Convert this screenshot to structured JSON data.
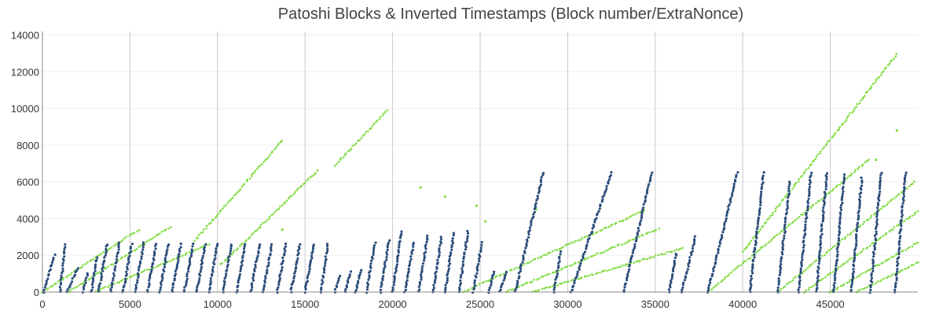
{
  "chart_data": {
    "type": "scatter",
    "title": "Patoshi Blocks & Inverted Timestamps (Block number/ExtraNonce)",
    "xlabel": "",
    "ylabel": "",
    "xlim": [
      0,
      50000
    ],
    "ylim": [
      0,
      14200
    ],
    "x_ticks": [
      0,
      5000,
      10000,
      15000,
      20000,
      25000,
      30000,
      35000,
      40000,
      45000
    ],
    "y_ticks": [
      0,
      2000,
      4000,
      6000,
      8000,
      10000,
      12000,
      14000
    ],
    "x_tick_labels": [
      "0",
      "5000",
      "10000",
      "15000",
      "20000",
      "25000",
      "30000",
      "35000",
      "40000",
      "45000"
    ],
    "y_tick_labels": [
      "0",
      "2000",
      "4000",
      "6000",
      "8000",
      "10000",
      "12000",
      "14000"
    ],
    "grid": {
      "vertical": true,
      "horizontal": true
    },
    "legend": "none",
    "series": [
      {
        "color": "#7fdb3f",
        "marker": "dot",
        "segments": [
          [
            [
              0,
              0
            ],
            [
              5500,
              3400
            ]
          ],
          [
            [
              1500,
              0
            ],
            [
              7300,
              3550
            ]
          ],
          [
            [
              3000,
              0
            ],
            [
              9500,
              2600
            ]
          ],
          [
            [
              8700,
              2800
            ],
            [
              13700,
              8250
            ]
          ],
          [
            [
              10200,
              1500
            ],
            [
              15700,
              6600
            ]
          ],
          [
            [
              16700,
              6900
            ],
            [
              19700,
              9900
            ]
          ],
          [
            [
              24000,
              0
            ],
            [
              34400,
              4450
            ]
          ],
          [
            [
              26500,
              0
            ],
            [
              35200,
              3450
            ]
          ],
          [
            [
              28000,
              0
            ],
            [
              36600,
              2400
            ]
          ],
          [
            [
              38000,
              0
            ],
            [
              47200,
              7200
            ]
          ],
          [
            [
              40000,
              2200
            ],
            [
              48800,
              12950
            ]
          ],
          [
            [
              42000,
              0
            ],
            [
              49800,
              6000
            ]
          ],
          [
            [
              43500,
              0
            ],
            [
              50000,
              4400
            ]
          ],
          [
            [
              45000,
              0
            ],
            [
              50000,
              2700
            ]
          ],
          [
            [
              46500,
              0
            ],
            [
              50000,
              1600
            ]
          ]
        ],
        "points": [
          [
            13700,
            3400
          ],
          [
            21600,
            5700
          ],
          [
            23000,
            5200
          ],
          [
            24800,
            4700
          ],
          [
            25300,
            3850
          ],
          [
            28200,
            4500
          ],
          [
            47600,
            7200
          ],
          [
            48800,
            8800
          ]
        ]
      },
      {
        "color": "#2a4c7a",
        "marker": "dot",
        "segments": [
          [
            [
              50,
              0
            ],
            [
              700,
              2000
            ]
          ],
          [
            [
              1000,
              0
            ],
            [
              1300,
              2600
            ]
          ],
          [
            [
              1400,
              0
            ],
            [
              2000,
              1300
            ]
          ],
          [
            [
              2300,
              0
            ],
            [
              2600,
              1000
            ]
          ],
          [
            [
              2800,
              0
            ],
            [
              3100,
              1900
            ]
          ],
          [
            [
              3200,
              0
            ],
            [
              3700,
              2600
            ]
          ],
          [
            [
              3900,
              0
            ],
            [
              4400,
              2700
            ]
          ],
          [
            [
              4600,
              0
            ],
            [
              5100,
              2600
            ]
          ],
          [
            [
              5300,
              0
            ],
            [
              5800,
              2700
            ]
          ],
          [
            [
              6000,
              0
            ],
            [
              6500,
              2600
            ]
          ],
          [
            [
              6700,
              0
            ],
            [
              7200,
              2600
            ]
          ],
          [
            [
              7400,
              0
            ],
            [
              7900,
              2600
            ]
          ],
          [
            [
              8100,
              0
            ],
            [
              8600,
              2600
            ]
          ],
          [
            [
              8800,
              0
            ],
            [
              9300,
              2600
            ]
          ],
          [
            [
              9500,
              0
            ],
            [
              10000,
              2600
            ]
          ],
          [
            [
              10300,
              0
            ],
            [
              10800,
              2600
            ]
          ],
          [
            [
              11100,
              0
            ],
            [
              11600,
              2600
            ]
          ],
          [
            [
              11900,
              0
            ],
            [
              12400,
              2600
            ]
          ],
          [
            [
              12600,
              0
            ],
            [
              13100,
              2600
            ]
          ],
          [
            [
              13400,
              0
            ],
            [
              13900,
              2600
            ]
          ],
          [
            [
              14200,
              0
            ],
            [
              14700,
              2600
            ]
          ],
          [
            [
              15000,
              0
            ],
            [
              15500,
              2600
            ]
          ],
          [
            [
              15900,
              0
            ],
            [
              16300,
              2600
            ]
          ],
          [
            [
              16700,
              0
            ],
            [
              17000,
              900
            ]
          ],
          [
            [
              17300,
              0
            ],
            [
              17600,
              1100
            ]
          ],
          [
            [
              17900,
              0
            ],
            [
              18200,
              1200
            ]
          ],
          [
            [
              18500,
              0
            ],
            [
              19000,
              2700
            ]
          ],
          [
            [
              19300,
              0
            ],
            [
              19800,
              2800
            ]
          ],
          [
            [
              20000,
              0
            ],
            [
              20500,
              3300
            ]
          ],
          [
            [
              20700,
              0
            ],
            [
              21200,
              2700
            ]
          ],
          [
            [
              21500,
              0
            ],
            [
              22000,
              3100
            ]
          ],
          [
            [
              22300,
              0
            ],
            [
              22800,
              3000
            ]
          ],
          [
            [
              23000,
              0
            ],
            [
              23500,
              3200
            ]
          ],
          [
            [
              23800,
              0
            ],
            [
              24300,
              3300
            ]
          ],
          [
            [
              24600,
              0
            ],
            [
              25100,
              2700
            ]
          ],
          [
            [
              25500,
              0
            ],
            [
              25800,
              1100
            ]
          ],
          [
            [
              26100,
              0
            ],
            [
              26500,
              1100
            ]
          ],
          [
            [
              27000,
              0
            ],
            [
              28600,
              6500
            ]
          ],
          [
            [
              29200,
              0
            ],
            [
              29600,
              2200
            ]
          ],
          [
            [
              30200,
              0
            ],
            [
              32500,
              6500
            ]
          ],
          [
            [
              33200,
              0
            ],
            [
              34800,
              6500
            ]
          ],
          [
            [
              35800,
              0
            ],
            [
              36200,
              2100
            ]
          ],
          [
            [
              36500,
              0
            ],
            [
              37300,
              3000
            ]
          ],
          [
            [
              38000,
              0
            ],
            [
              39700,
              6500
            ]
          ],
          [
            [
              40400,
              0
            ],
            [
              41200,
              6500
            ]
          ],
          [
            [
              42000,
              0
            ],
            [
              42700,
              6000
            ]
          ],
          [
            [
              43200,
              0
            ],
            [
              43900,
              6500
            ]
          ],
          [
            [
              44200,
              0
            ],
            [
              44800,
              6500
            ]
          ],
          [
            [
              45200,
              0
            ],
            [
              45800,
              6400
            ]
          ],
          [
            [
              46200,
              0
            ],
            [
              46800,
              6200
            ]
          ],
          [
            [
              47300,
              0
            ],
            [
              47900,
              6500
            ]
          ],
          [
            [
              48700,
              0
            ],
            [
              49300,
              6500
            ]
          ]
        ],
        "points": []
      }
    ]
  }
}
